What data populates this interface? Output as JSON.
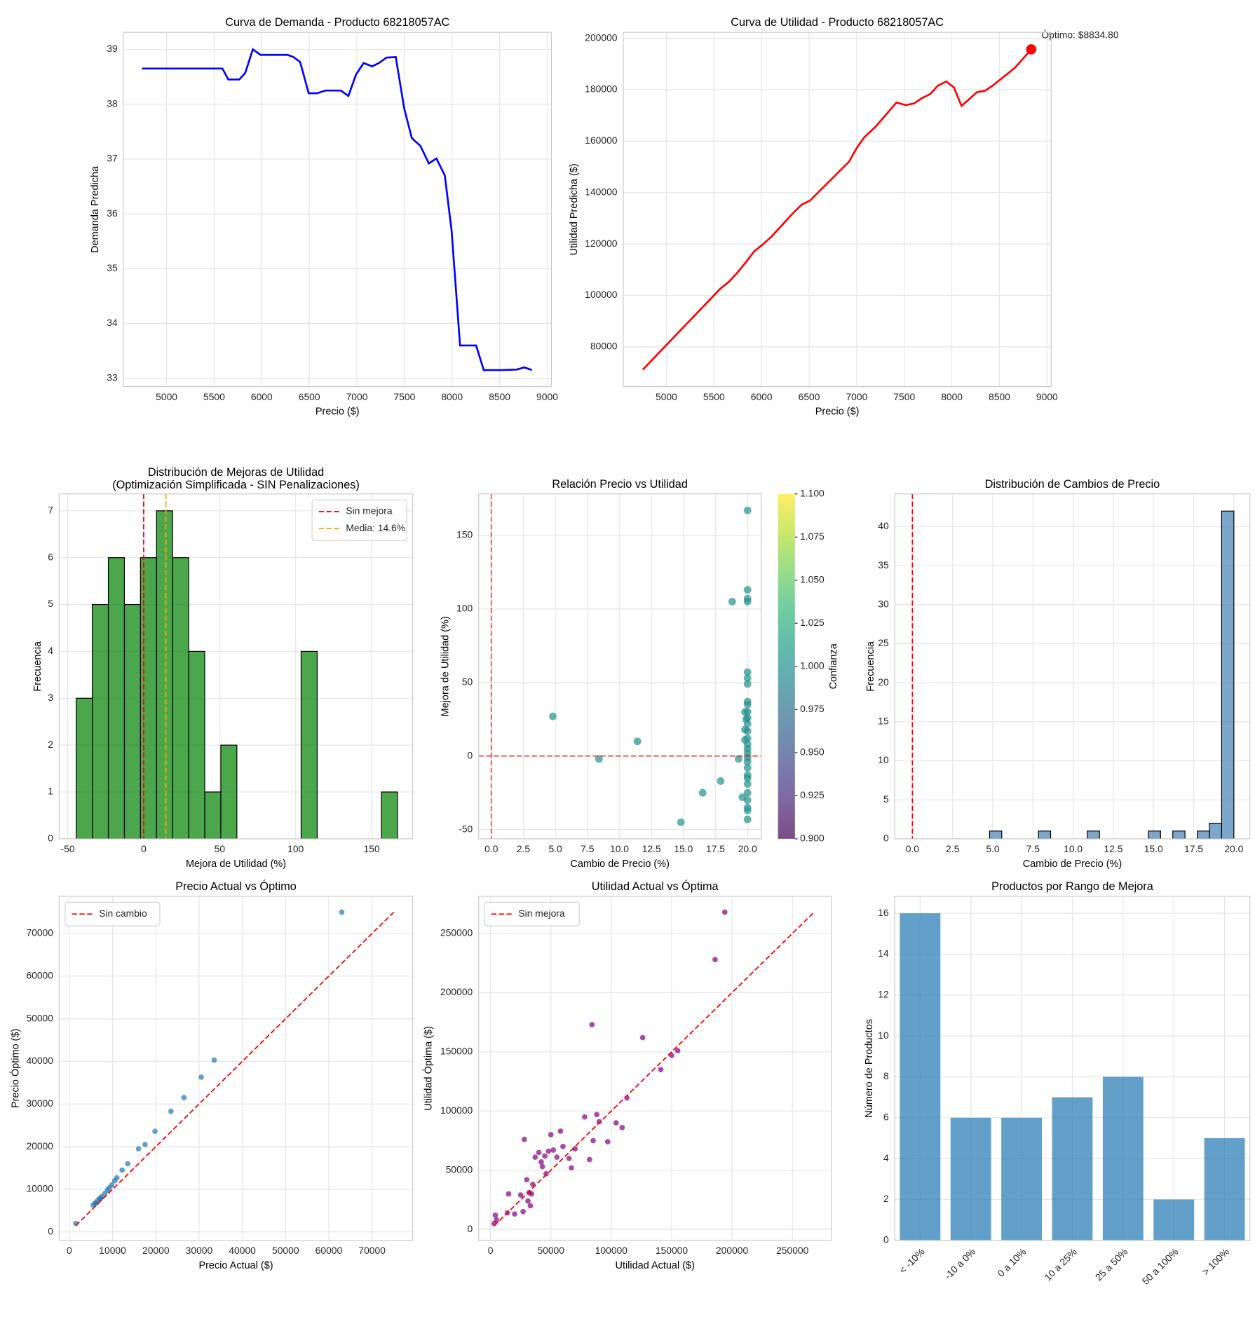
{
  "chart_data": [
    {
      "type": "line",
      "title": "Curva de Demanda - Producto 68218057AC",
      "xlabel": "Precio ($)",
      "ylabel": "Demanda Predicha",
      "color": "#0000ff",
      "grid": true,
      "x": [
        4742,
        5587,
        5649,
        5764,
        5827,
        5907,
        5987,
        6271,
        6333,
        6404,
        6493,
        6582,
        6671,
        6831,
        6911,
        6991,
        7071,
        7160,
        7231,
        7311,
        7409,
        7498,
        7578,
        7667,
        7756,
        7836,
        7924,
        7996,
        8084,
        8253,
        8333,
        8520,
        8680,
        8760,
        8840
      ],
      "y": [
        38.65,
        38.65,
        38.45,
        38.45,
        38.57,
        39.0,
        38.9,
        38.9,
        38.86,
        38.77,
        38.2,
        38.2,
        38.25,
        38.25,
        38.15,
        38.54,
        38.75,
        38.69,
        38.75,
        38.85,
        38.86,
        37.92,
        37.38,
        37.24,
        36.92,
        37.01,
        36.7,
        35.68,
        33.6,
        33.6,
        33.15,
        33.15,
        33.16,
        33.2,
        33.15
      ],
      "xlim": [
        4547,
        9044
      ],
      "xticks": [
        5000,
        5500,
        6000,
        6500,
        7000,
        7500,
        8000,
        8500,
        9000
      ],
      "ylim": [
        32.85,
        39.31
      ],
      "yticks": [
        33,
        34,
        35,
        36,
        37,
        38,
        39
      ]
    },
    {
      "type": "line",
      "title": "Curva de Utilidad - Producto 68218057AC",
      "xlabel": "Precio ($)",
      "ylabel": "Utilidad Predicha ($)",
      "color": "#ff0000",
      "grid": true,
      "x": [
        4751,
        5569,
        5658,
        5747,
        5836,
        5924,
        6013,
        6102,
        6218,
        6324,
        6422,
        6511,
        6618,
        6724,
        6822,
        6920,
        7000,
        7080,
        7196,
        7311,
        7418,
        7516,
        7604,
        7684,
        7773,
        7853,
        7942,
        8022,
        8102,
        8173,
        8262,
        8351,
        8440,
        8662,
        8835
      ],
      "y": [
        71100,
        102700,
        105300,
        108900,
        112900,
        117200,
        119800,
        122800,
        127400,
        131700,
        135300,
        136900,
        140900,
        144800,
        148400,
        152000,
        157300,
        161500,
        165500,
        170400,
        175000,
        174000,
        174700,
        176700,
        178300,
        181600,
        183200,
        180900,
        173700,
        176000,
        179000,
        179600,
        181900,
        188500,
        195700
      ],
      "optimum": {
        "x": 8834.8,
        "y": 195700
      },
      "annotation": "Óptimo: $8834.80",
      "xlim": [
        4547,
        9044
      ],
      "xticks": [
        5000,
        5500,
        6000,
        6500,
        7000,
        7500,
        8000,
        8500,
        9000
      ],
      "ylim": [
        64550,
        202300
      ],
      "yticks": [
        80000,
        100000,
        120000,
        140000,
        160000,
        180000,
        200000
      ]
    },
    {
      "type": "histogram",
      "title": "Distribución de Mejoras de Utilidad",
      "subtitle": "(Optimización Simplificada - SIN Penalizaciones)",
      "xlabel": "Mejora de Utilidad (%)",
      "ylabel": "Frecuencia",
      "color": "#008000",
      "edgecolor": "#000000",
      "grid": true,
      "bins": [
        -44.4,
        -33.83,
        -23.26,
        -12.69,
        -2.12,
        8.45,
        19.02,
        29.59,
        40.16,
        50.73,
        61.3,
        71.87,
        82.44,
        93.01,
        103.58,
        114.15,
        124.72,
        135.29,
        145.86,
        156.43,
        167.0
      ],
      "counts": [
        3,
        5,
        6,
        5,
        6,
        7,
        6,
        4,
        1,
        2,
        0,
        0,
        0,
        0,
        4,
        0,
        0,
        0,
        0,
        1
      ],
      "vlines": [
        {
          "name": "Sin mejora",
          "x": 0,
          "color": "#ff0000"
        },
        {
          "name": "Media: 14.6%",
          "x": 14.6,
          "color": "#ffa500"
        }
      ],
      "legend": "upper right",
      "xlim": [
        -55.6,
        177
      ],
      "xticks": [
        -50,
        0,
        50,
        100,
        150
      ],
      "ylim": [
        0,
        7.36
      ],
      "yticks": [
        0,
        1,
        2,
        3,
        4,
        5,
        6,
        7
      ]
    },
    {
      "type": "scatter",
      "title": "Relación Precio vs Utilidad",
      "xlabel": "Cambio de Precio (%)",
      "ylabel": "Mejora de Utilidad (%)",
      "color": "#21918c",
      "grid": true,
      "x": [
        4.8,
        8.4,
        11.4,
        14.8,
        16.5,
        17.9,
        18.8,
        19.3,
        19.6,
        19.8,
        19.8,
        19.8,
        20,
        20,
        20,
        20,
        20,
        20,
        20,
        20,
        20,
        20,
        20,
        20,
        20,
        20,
        20,
        20,
        20,
        20,
        20,
        20,
        20,
        20,
        20,
        20,
        20,
        20,
        20,
        20,
        19.9
      ],
      "y": [
        27,
        -2,
        10,
        -45,
        -25,
        -17,
        105,
        -2,
        -28,
        30,
        18,
        11,
        167,
        113,
        107,
        105,
        57,
        53,
        49,
        37,
        35,
        30,
        26,
        22,
        17,
        12,
        8,
        5,
        2,
        -1,
        -4,
        -8,
        -13,
        -15,
        -19,
        -25,
        -30,
        -35,
        -37,
        -43,
        25
      ],
      "vline": 0,
      "hline": 0,
      "reference_color": "#ff0000",
      "colorbar": {
        "label": "Confianza",
        "colormap": "viridis",
        "lim": [
          0.9,
          1.1
        ],
        "ticks": [
          {
            "value": 0.9,
            "label": "0.900"
          },
          {
            "value": 0.925,
            "label": "0.925"
          },
          {
            "value": 0.95,
            "label": "0.950"
          },
          {
            "value": 0.975,
            "label": "0.975"
          },
          {
            "value": 1.0,
            "label": "1.000"
          },
          {
            "value": 1.025,
            "label": "1.025"
          },
          {
            "value": 1.05,
            "label": "1.050"
          },
          {
            "value": 1.075,
            "label": "1.075"
          },
          {
            "value": 1.1,
            "label": "1.100"
          }
        ]
      },
      "xlim": [
        -0.99,
        21.06
      ],
      "xticks": [
        {
          "value": 0,
          "label": "0.0"
        },
        {
          "value": 2.5,
          "label": "2.5"
        },
        {
          "value": 5,
          "label": "5.0"
        },
        {
          "value": 7.5,
          "label": "7.5"
        },
        {
          "value": 10,
          "label": "10.0"
        },
        {
          "value": 12.5,
          "label": "12.5"
        },
        {
          "value": 15,
          "label": "15.0"
        },
        {
          "value": 17.5,
          "label": "17.5"
        },
        {
          "value": 20,
          "label": "20.0"
        }
      ],
      "ylim": [
        -56.3,
        178.2
      ],
      "yticks": [
        -50,
        0,
        50,
        100,
        150
      ]
    },
    {
      "type": "histogram",
      "title": "Distribución de Cambios de Precio",
      "xlabel": "Cambio de Precio (%)",
      "ylabel": "Frecuencia",
      "color": "#4682b4",
      "edgecolor": "#000000",
      "grid": true,
      "bins": [
        4.8,
        5.56,
        6.32,
        7.08,
        7.84,
        8.6,
        9.36,
        10.12,
        10.88,
        11.64,
        12.4,
        13.16,
        13.92,
        14.68,
        15.44,
        16.2,
        16.96,
        17.72,
        18.48,
        19.24,
        20.0
      ],
      "counts": [
        1,
        0,
        0,
        0,
        1,
        0,
        0,
        0,
        1,
        0,
        0,
        0,
        0,
        1,
        0,
        1,
        0,
        1,
        2,
        42
      ],
      "vline": 0,
      "reference_color": "#ff0000",
      "xlim": [
        -1.1,
        21
      ],
      "xticks": [
        {
          "value": 0,
          "label": "0.0"
        },
        {
          "value": 2.5,
          "label": "2.5"
        },
        {
          "value": 5,
          "label": "5.0"
        },
        {
          "value": 7.5,
          "label": "7.5"
        },
        {
          "value": 10,
          "label": "10.0"
        },
        {
          "value": 12.5,
          "label": "12.5"
        },
        {
          "value": 15,
          "label": "15.0"
        },
        {
          "value": 17.5,
          "label": "17.5"
        },
        {
          "value": 20,
          "label": "20.0"
        }
      ],
      "ylim": [
        0,
        44.2
      ],
      "yticks": [
        0,
        5,
        10,
        15,
        20,
        25,
        30,
        35,
        40
      ]
    },
    {
      "type": "scatter",
      "title": "Precio Actual vs Óptimo",
      "xlabel": "Precio Actual ($)",
      "ylabel": "Precio Óptimo ($)",
      "color": "#1f77b4",
      "grid": true,
      "x": [
        1500,
        5500,
        6000,
        6200,
        6500,
        7000,
        7200,
        7500,
        8200,
        8800,
        9200,
        9800,
        10500,
        11000,
        12200,
        13500,
        16000,
        17500,
        19800,
        23500,
        26500,
        30500,
        33500,
        63000
      ],
      "y": [
        2000,
        6300,
        6800,
        6700,
        7300,
        7800,
        7800,
        8300,
        9000,
        9800,
        10300,
        11000,
        12000,
        12700,
        14500,
        16000,
        19500,
        20500,
        23600,
        28300,
        31500,
        36300,
        40300,
        75000
      ],
      "reference_line": {
        "name": "Sin cambio",
        "x": [
          1500,
          75000
        ],
        "y": [
          1500,
          75000
        ],
        "color": "#ff0000"
      },
      "legend": "upper left",
      "xlim": [
        -2346,
        79400
      ],
      "xticks": [
        0,
        10000,
        20000,
        30000,
        40000,
        50000,
        60000,
        70000
      ],
      "ylim": [
        -1983,
        78720
      ],
      "yticks": [
        0,
        10000,
        20000,
        30000,
        40000,
        50000,
        60000,
        70000
      ]
    },
    {
      "type": "scatter",
      "title": "Utilidad Actual vs Óptima",
      "xlabel": "Utilidad Actual ($)",
      "ylabel": "Utilidad Óptima ($)",
      "color": "#800080",
      "grid": true,
      "x": [
        3000,
        4000,
        5000,
        14000,
        15000,
        20000,
        25000,
        27000,
        28000,
        30000,
        31000,
        32000,
        33000,
        34000,
        35000,
        37000,
        40000,
        42000,
        43000,
        45000,
        46000,
        48000,
        50000,
        52000,
        55000,
        58000,
        60000,
        65000,
        67000,
        70000,
        78000,
        82000,
        84000,
        85000,
        88000,
        90000,
        97000,
        104000,
        109000,
        113000,
        126000,
        141000,
        150000,
        155000,
        186000,
        194000
      ],
      "y": [
        5000,
        12000,
        8000,
        14000,
        30000,
        13000,
        29000,
        15000,
        76000,
        42000,
        24000,
        31000,
        20000,
        30000,
        38000,
        61000,
        65000,
        57000,
        53000,
        62000,
        47000,
        66000,
        80000,
        67000,
        61000,
        83000,
        70000,
        60000,
        52000,
        68000,
        95000,
        59000,
        173000,
        75000,
        97000,
        91000,
        74000,
        90000,
        86000,
        111000,
        162000,
        135000,
        147000,
        151000,
        228000,
        268000
      ],
      "reference_line": {
        "name": "Sin mejora",
        "x": [
          3000,
          268000
        ],
        "y": [
          3000,
          268000
        ],
        "color": "#ff0000"
      },
      "legend": "upper left",
      "xlim": [
        -9800,
        282200
      ],
      "xticks": [
        0,
        50000,
        100000,
        150000,
        200000,
        250000
      ],
      "ylim": [
        -9300,
        281400
      ],
      "yticks": [
        0,
        50000,
        100000,
        150000,
        200000,
        250000
      ]
    },
    {
      "type": "bar",
      "title": "Productos por Rango de Mejora",
      "ylabel": "Número de Productos",
      "color": "#1f77b4",
      "grid": true,
      "categories": [
        "< -10%",
        "-10 a 0%",
        "0 a 10%",
        "10 a 25%",
        "25 a 50%",
        "50 a 100%",
        "> 100%"
      ],
      "values": [
        16,
        6,
        6,
        7,
        8,
        2,
        5
      ],
      "ylim": [
        0,
        16.83
      ],
      "yticks": [
        0,
        2,
        4,
        6,
        8,
        10,
        12,
        14,
        16
      ]
    }
  ]
}
